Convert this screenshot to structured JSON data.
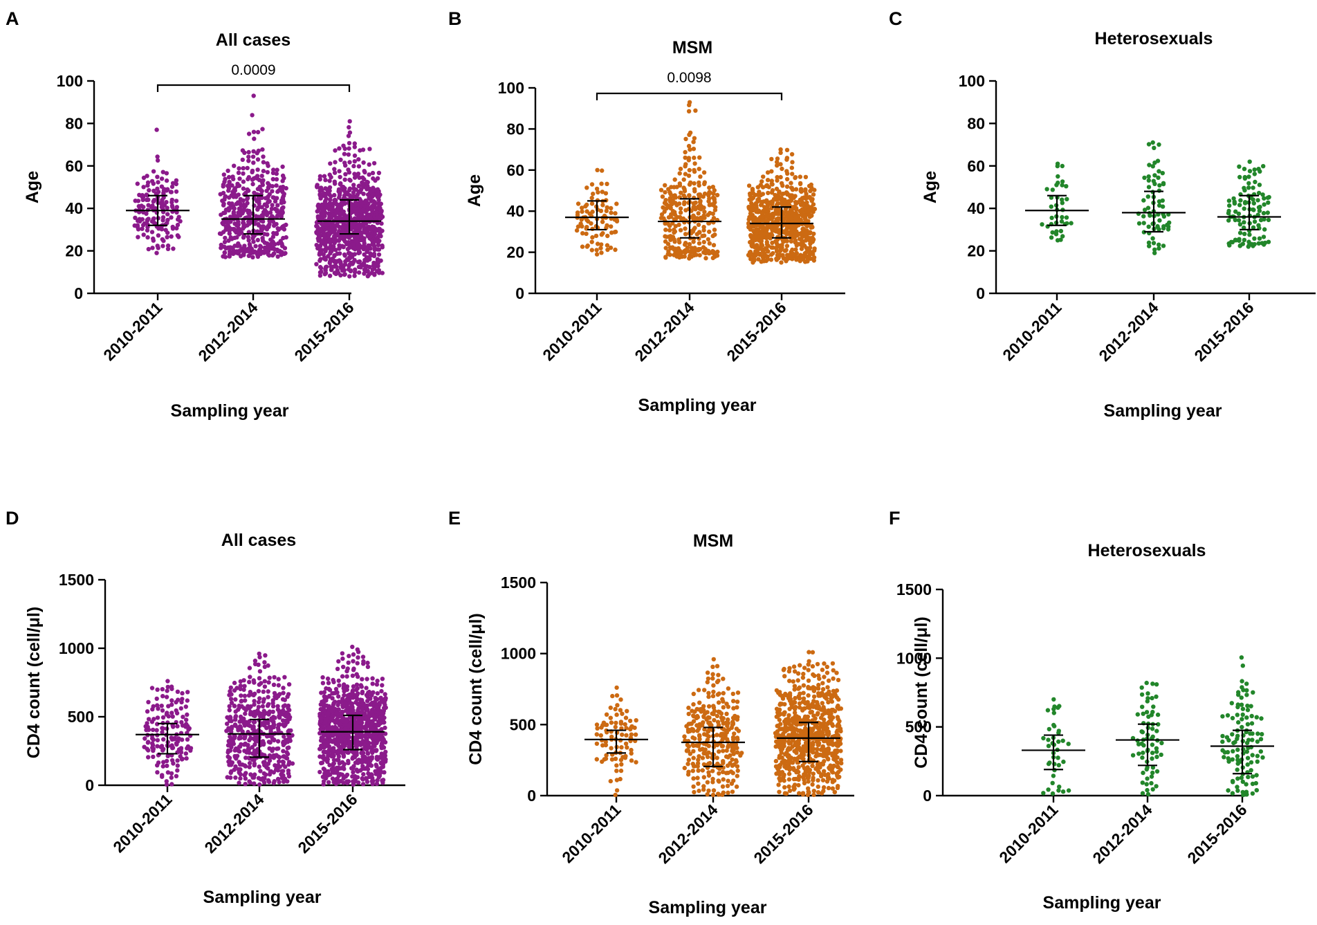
{
  "figure": {
    "colors": {
      "All cases": "#8b1a8b",
      "MSM": "#cc6a12",
      "Heterosexuals": "#22862a"
    }
  },
  "chart_data": [
    {
      "type": "scatter",
      "panel": "A",
      "title": "All cases",
      "xlabel": "Sampling year",
      "ylabel": "Age",
      "categories": [
        "2010-2011",
        "2012-2014",
        "2015-2016"
      ],
      "ylim": [
        0,
        100
      ],
      "yticks": [
        "0",
        "20",
        "40",
        "60",
        "80",
        "100"
      ],
      "color": "#8b1a8b",
      "significance": {
        "from": "2010-2011",
        "to": "2015-2016",
        "label": "0.0009"
      },
      "series": [
        {
          "name": "2010-2011",
          "median": 39,
          "q1": 32,
          "q3": 46,
          "n": 160,
          "min": 19,
          "max": 77
        },
        {
          "name": "2012-2014",
          "median": 35,
          "q1": 28,
          "q3": 46,
          "n": 480,
          "min": 17,
          "max": 93
        },
        {
          "name": "2015-2016",
          "median": 34,
          "q1": 28,
          "q3": 44,
          "n": 900,
          "min": 8,
          "max": 81
        }
      ]
    },
    {
      "type": "scatter",
      "panel": "B",
      "title": "MSM",
      "xlabel": "Sampling year",
      "ylabel": "Age",
      "categories": [
        "2010-2011",
        "2012-2014",
        "2015-2016"
      ],
      "ylim": [
        0,
        100
      ],
      "yticks": [
        "0",
        "20",
        "40",
        "60",
        "80",
        "100"
      ],
      "color": "#cc6a12",
      "significance": {
        "from": "2010-2011",
        "to": "2015-2016",
        "label": "0.0098"
      },
      "series": [
        {
          "name": "2010-2011",
          "median": 37,
          "q1": 31,
          "q3": 45,
          "n": 90,
          "min": 19,
          "max": 60
        },
        {
          "name": "2012-2014",
          "median": 35,
          "q1": 27,
          "q3": 46,
          "n": 300,
          "min": 17,
          "max": 93
        },
        {
          "name": "2015-2016",
          "median": 34,
          "q1": 27,
          "q3": 42,
          "n": 700,
          "min": 15,
          "max": 70
        }
      ]
    },
    {
      "type": "scatter",
      "panel": "C",
      "title": "Heterosexuals",
      "xlabel": "Sampling year",
      "ylabel": "Age",
      "categories": [
        "2010-2011",
        "2012-2014",
        "2015-2016"
      ],
      "ylim": [
        0,
        100
      ],
      "yticks": [
        "0",
        "20",
        "40",
        "60",
        "80",
        "100"
      ],
      "color": "#22862a",
      "series": [
        {
          "name": "2010-2011",
          "median": 39,
          "q1": 32,
          "q3": 46,
          "n": 40,
          "min": 25,
          "max": 61
        },
        {
          "name": "2012-2014",
          "median": 38,
          "q1": 29,
          "q3": 48,
          "n": 70,
          "min": 19,
          "max": 71
        },
        {
          "name": "2015-2016",
          "median": 36,
          "q1": 30,
          "q3": 46,
          "n": 110,
          "min": 22,
          "max": 62
        }
      ]
    },
    {
      "type": "scatter",
      "panel": "D",
      "title": "All cases",
      "xlabel": "Sampling year",
      "ylabel": "CD4 count (cell/μl)",
      "categories": [
        "2010-2011",
        "2012-2014",
        "2015-2016"
      ],
      "ylim": [
        0,
        1500
      ],
      "yticks": [
        "0",
        "500",
        "1000",
        "1500"
      ],
      "color": "#8b1a8b",
      "series": [
        {
          "name": "2010-2011",
          "median": 370,
          "q1": 230,
          "q3": 450,
          "n": 160,
          "min": 5,
          "max": 760
        },
        {
          "name": "2012-2014",
          "median": 375,
          "q1": 205,
          "q3": 480,
          "n": 480,
          "min": 5,
          "max": 960
        },
        {
          "name": "2015-2016",
          "median": 390,
          "q1": 260,
          "q3": 510,
          "n": 900,
          "min": 5,
          "max": 1010
        }
      ]
    },
    {
      "type": "scatter",
      "panel": "E",
      "title": "MSM",
      "xlabel": "Sampling year",
      "ylabel": "CD4 count (cell/μl)",
      "categories": [
        "2010-2011",
        "2012-2014",
        "2015-2016"
      ],
      "ylim": [
        0,
        1500
      ],
      "yticks": [
        "0",
        "500",
        "1000",
        "1500"
      ],
      "color": "#cc6a12",
      "series": [
        {
          "name": "2010-2011",
          "median": 395,
          "q1": 300,
          "q3": 460,
          "n": 90,
          "min": 5,
          "max": 760
        },
        {
          "name": "2012-2014",
          "median": 375,
          "q1": 205,
          "q3": 480,
          "n": 300,
          "min": 5,
          "max": 960
        },
        {
          "name": "2015-2016",
          "median": 405,
          "q1": 240,
          "q3": 515,
          "n": 700,
          "min": 5,
          "max": 1010
        }
      ]
    },
    {
      "type": "scatter",
      "panel": "F",
      "title": "Heterosexuals",
      "xlabel": "Sampling year",
      "ylabel": "CD4 count (cell/μl)",
      "categories": [
        "2010-2011",
        "2012-2014",
        "2015-2016"
      ],
      "ylim": [
        0,
        1500
      ],
      "yticks": [
        "0",
        "500",
        "1000",
        "1500"
      ],
      "color": "#22862a",
      "series": [
        {
          "name": "2010-2011",
          "median": 330,
          "q1": 190,
          "q3": 440,
          "n": 40,
          "min": 15,
          "max": 700
        },
        {
          "name": "2012-2014",
          "median": 405,
          "q1": 220,
          "q3": 520,
          "n": 70,
          "min": 10,
          "max": 820
        },
        {
          "name": "2015-2016",
          "median": 360,
          "q1": 160,
          "q3": 475,
          "n": 110,
          "min": 5,
          "max": 1005
        }
      ]
    }
  ]
}
